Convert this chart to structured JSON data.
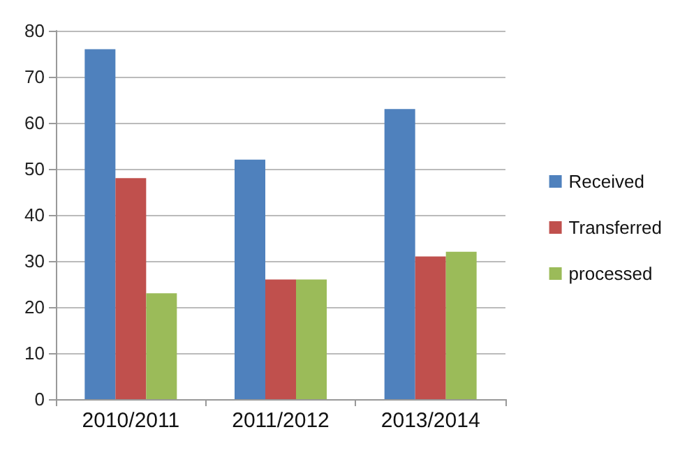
{
  "chart_data": {
    "type": "bar",
    "categories": [
      "2010/2011",
      "2011/2012",
      "2013/2014"
    ],
    "series": [
      {
        "name": "Received",
        "color": "#4f81bd",
        "values": [
          76,
          52,
          63
        ]
      },
      {
        "name": "Transferred",
        "color": "#c0504d",
        "values": [
          48,
          26,
          31
        ]
      },
      {
        "name": "processed",
        "color": "#9bbb59",
        "values": [
          23,
          26,
          32
        ]
      }
    ],
    "ylim": [
      0,
      80
    ],
    "yticks": [
      0,
      10,
      20,
      30,
      40,
      50,
      60,
      70,
      80
    ],
    "grid": "y",
    "legend": "right"
  }
}
